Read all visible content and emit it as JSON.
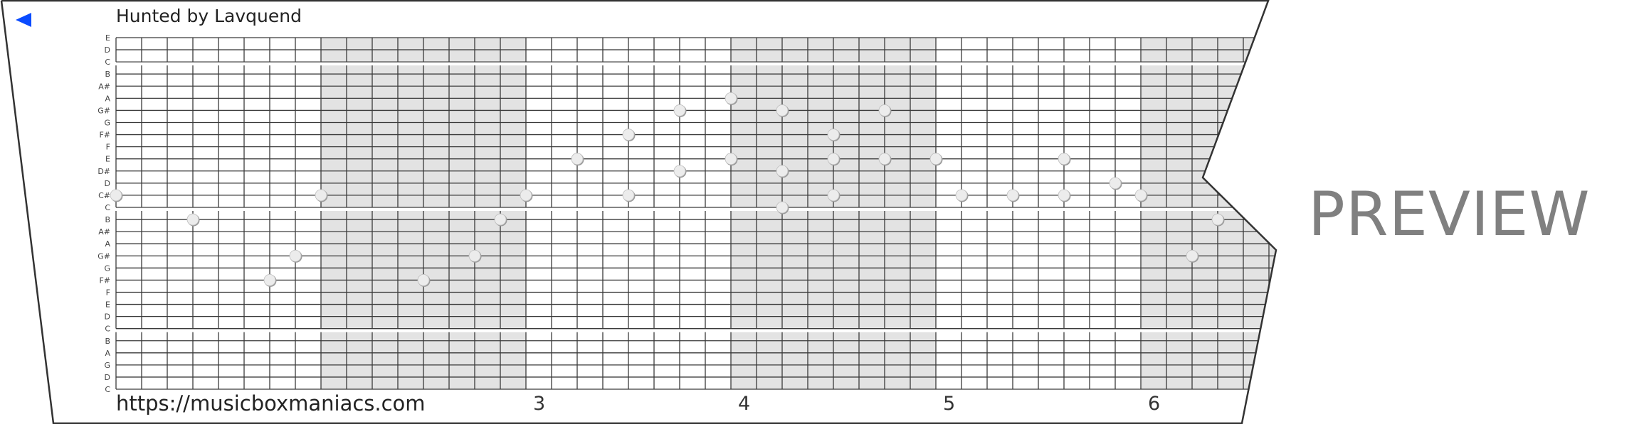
{
  "header": {
    "title": "Hunted by Lavquend",
    "back_icon": "back-triangle-icon",
    "back_color": "#0a4bff"
  },
  "footer": {
    "url": "https://musicboxmaniacs.com"
  },
  "watermark": "PREVIEW",
  "chart_data": {
    "type": "music-box-strip",
    "row_labels": [
      "E",
      "D",
      "C",
      "B",
      "A#",
      "A",
      "G#",
      "G",
      "F#",
      "F",
      "E",
      "D#",
      "D",
      "C#",
      "C",
      "B",
      "A#",
      "A",
      "G#",
      "G",
      "F#",
      "F",
      "E",
      "D",
      "C",
      "B",
      "A",
      "G",
      "D",
      "C"
    ],
    "measure_labels": [
      {
        "label": "3",
        "step": 16
      },
      {
        "label": "4",
        "step": 24
      },
      {
        "label": "5",
        "step": 32
      },
      {
        "label": "6",
        "step": 40
      }
    ],
    "steps_per_measure": 8,
    "shaded_measures": [
      2,
      4,
      6
    ],
    "notes": [
      {
        "step": 0,
        "row": 13
      },
      {
        "step": 3,
        "row": 15
      },
      {
        "step": 6,
        "row": 20
      },
      {
        "step": 7,
        "row": 18
      },
      {
        "step": 8,
        "row": 13
      },
      {
        "step": 12,
        "row": 20
      },
      {
        "step": 14,
        "row": 18
      },
      {
        "step": 15,
        "row": 15
      },
      {
        "step": 16,
        "row": 13
      },
      {
        "step": 18,
        "row": 10
      },
      {
        "step": 20,
        "row": 8
      },
      {
        "step": 20,
        "row": 13
      },
      {
        "step": 22,
        "row": 6
      },
      {
        "step": 22,
        "row": 11
      },
      {
        "step": 24,
        "row": 5
      },
      {
        "step": 24,
        "row": 10
      },
      {
        "step": 26,
        "row": 6
      },
      {
        "step": 26,
        "row": 11
      },
      {
        "step": 26,
        "row": 14
      },
      {
        "step": 28,
        "row": 8
      },
      {
        "step": 28,
        "row": 10
      },
      {
        "step": 28,
        "row": 13
      },
      {
        "step": 30,
        "row": 6
      },
      {
        "step": 30,
        "row": 10
      },
      {
        "step": 32,
        "row": 10
      },
      {
        "step": 33,
        "row": 13
      },
      {
        "step": 35,
        "row": 13
      },
      {
        "step": 37,
        "row": 13
      },
      {
        "step": 37,
        "row": 10
      },
      {
        "step": 39,
        "row": 12
      },
      {
        "step": 40,
        "row": 13
      },
      {
        "step": 42,
        "row": 18
      },
      {
        "step": 43,
        "row": 15
      }
    ],
    "colors": {
      "shade": "#e3e3e3",
      "grid": "#3a3a3a",
      "note": "#ececec"
    }
  }
}
